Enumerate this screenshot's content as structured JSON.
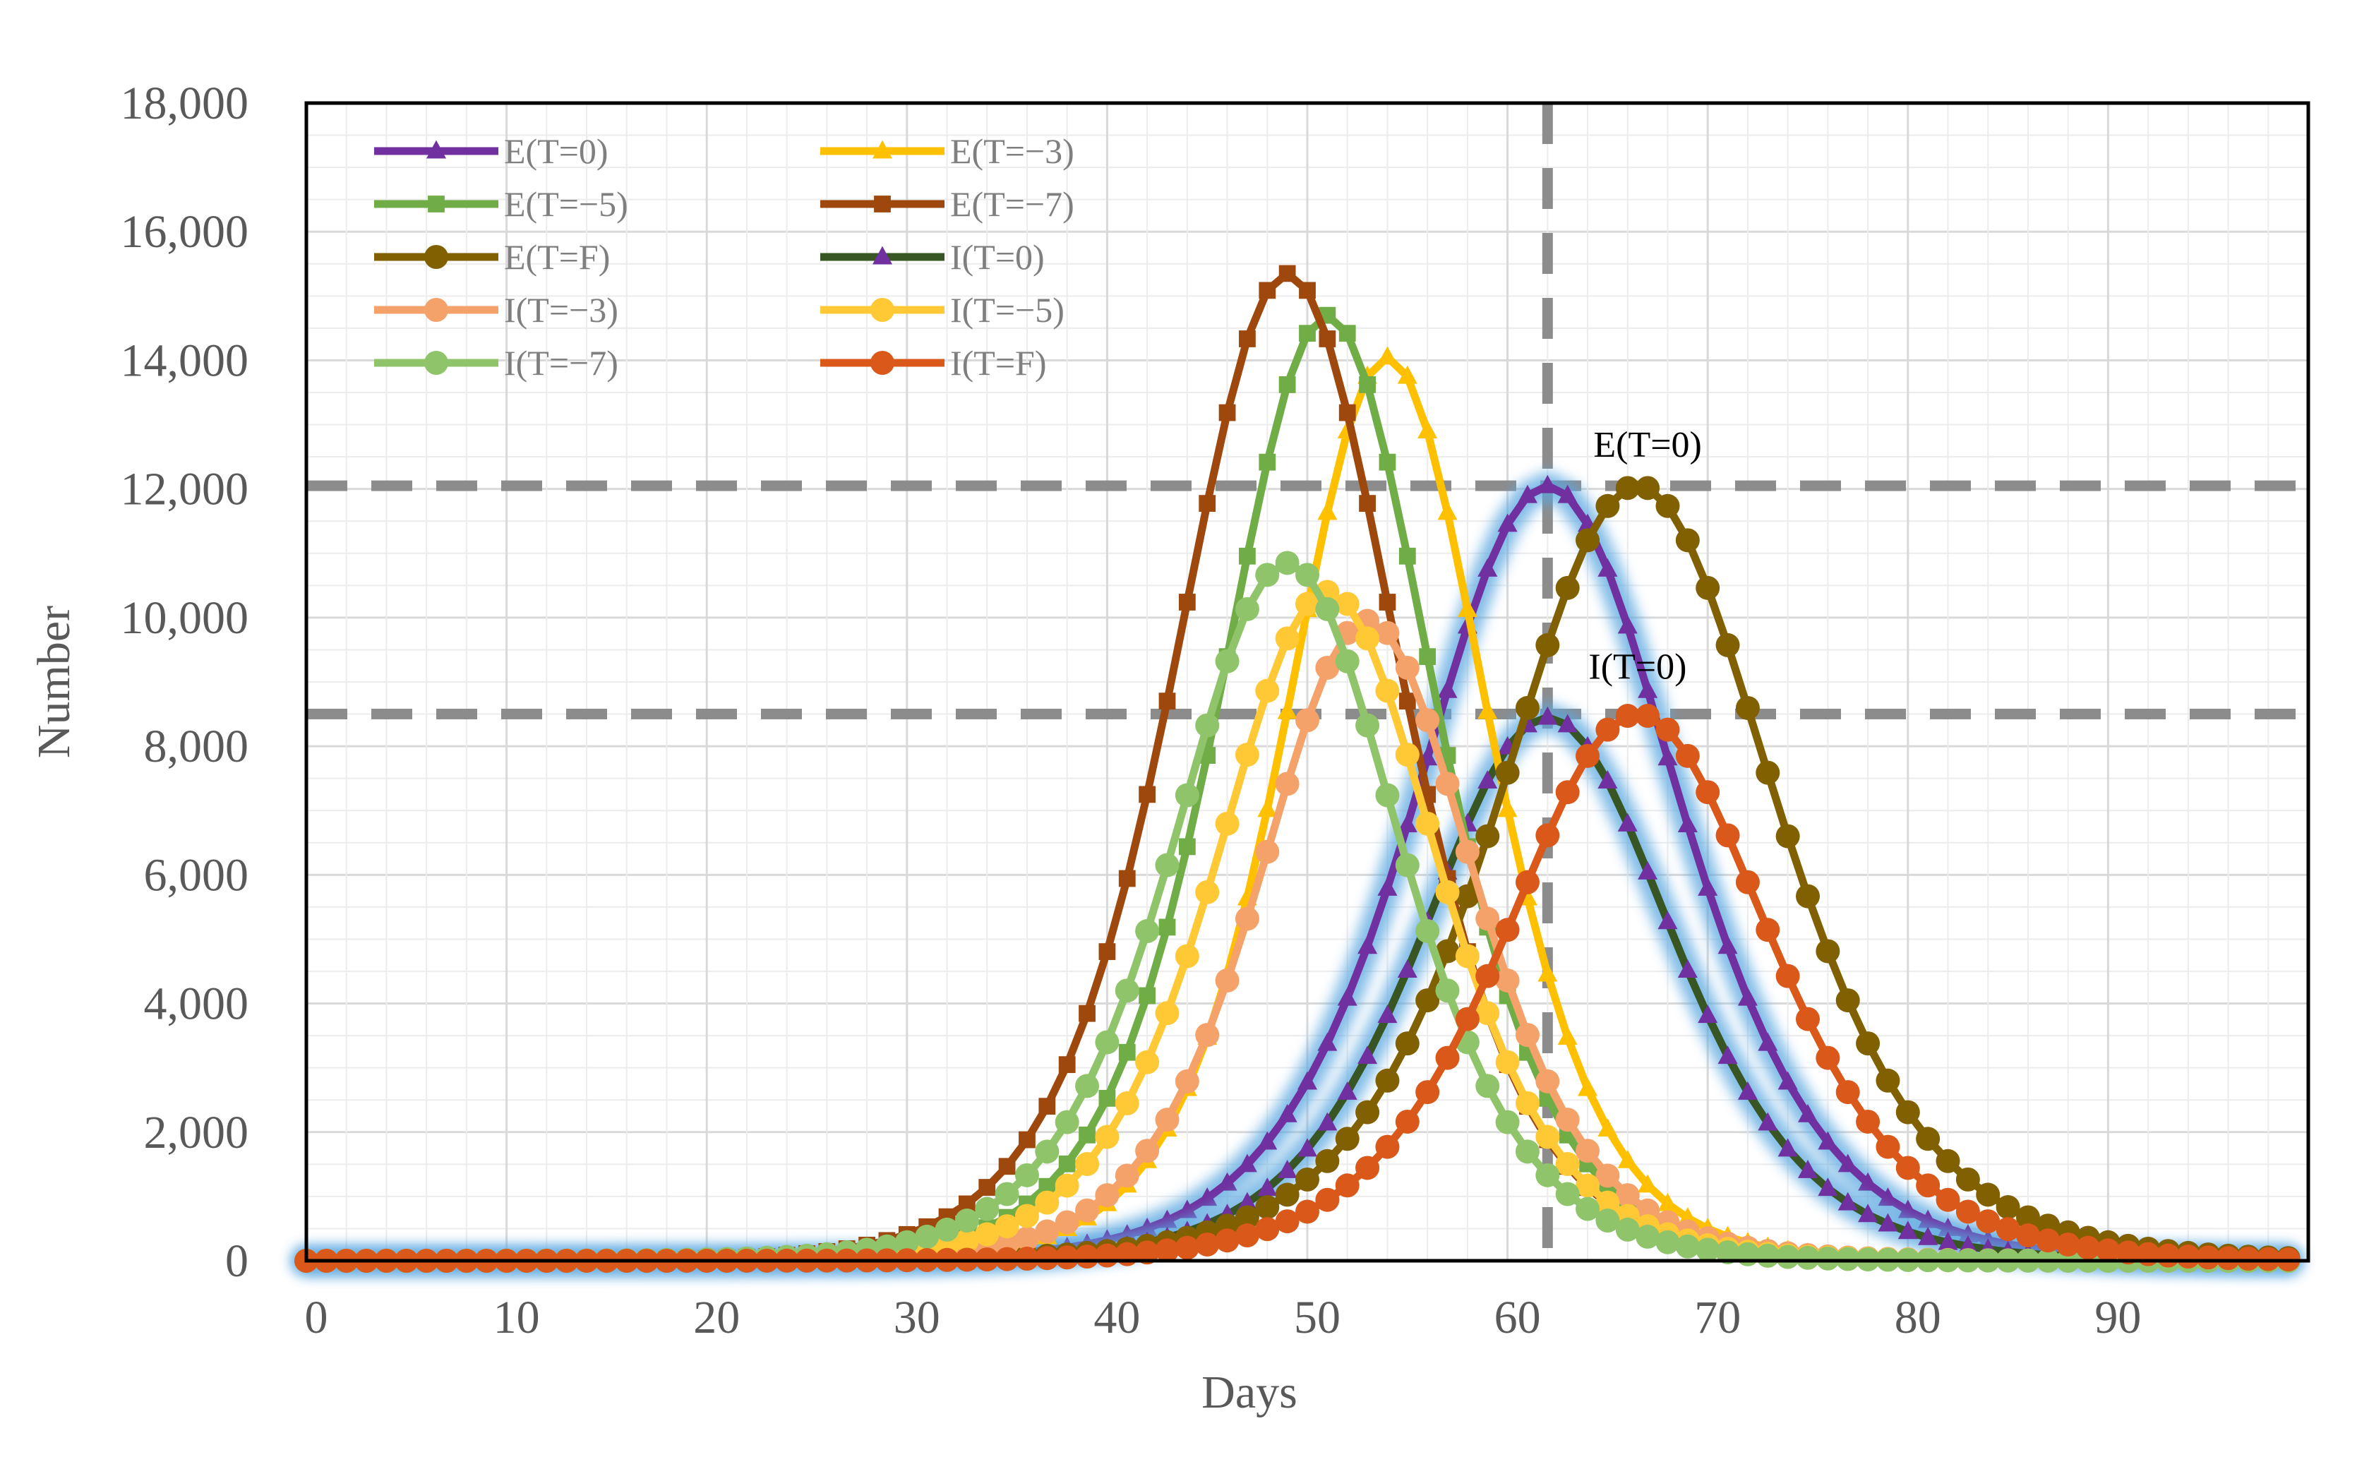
{
  "chart_data": {
    "type": "line",
    "title": "",
    "xlabel": "Days",
    "ylabel": "Number",
    "xlim": [
      0,
      100
    ],
    "ylim": [
      0,
      18000
    ],
    "x_ticks": [
      0,
      10,
      20,
      30,
      40,
      50,
      60,
      70,
      80,
      90
    ],
    "x_tick_labels": [
      "0",
      "10",
      "20",
      "30",
      "40",
      "50",
      "60",
      "70",
      "80",
      "90"
    ],
    "y_ticks": [
      0,
      2000,
      4000,
      6000,
      8000,
      10000,
      12000,
      14000,
      16000,
      18000
    ],
    "y_tick_labels": [
      "0",
      "2,000",
      "4,000",
      "6,000",
      "8,000",
      "10,000",
      "12,000",
      "14,000",
      "16,000",
      "18,000"
    ],
    "grid": true,
    "legend_position": "top-left",
    "reference_lines": {
      "vertical_x": 62,
      "horizontal_y": [
        12050,
        8500
      ]
    },
    "annotations": [
      {
        "text": "E(T=0)",
        "x": 67,
        "y": 12500
      },
      {
        "text": "I(T=0)",
        "x": 66.5,
        "y": 9050
      }
    ],
    "series": [
      {
        "name": "E(T=0)",
        "peak_day": 62,
        "peak": 12050,
        "width": 8.8,
        "color": "#7030a0",
        "marker": "triangle",
        "glow": true
      },
      {
        "name": "E(T=−3)",
        "peak_day": 54,
        "peak": 14050,
        "width": 6.8,
        "color": "#ffc000",
        "marker": "triangle",
        "glow": false
      },
      {
        "name": "E(T=−5)",
        "peak_day": 51,
        "peak": 14700,
        "width": 7.2,
        "color": "#70ad47",
        "marker": "square",
        "glow": false
      },
      {
        "name": "E(T=−7)",
        "peak_day": 49,
        "peak": 15350,
        "width": 7.6,
        "color": "#9e480e",
        "marker": "square",
        "glow": false
      },
      {
        "name": "E(T=F)",
        "peak_day": 66.5,
        "peak": 12050,
        "width": 9.2,
        "color": "#806000",
        "marker": "circle",
        "glow": false
      },
      {
        "name": "I(T=0)",
        "peak_day": 62,
        "peak": 8450,
        "width": 8.4,
        "color": "#375623",
        "marker": "triangle-purple",
        "glow": true
      },
      {
        "name": "I(T=−3)",
        "peak_day": 53,
        "peak": 9950,
        "width": 7.2,
        "color": "#f4a26a",
        "marker": "circle",
        "glow": false
      },
      {
        "name": "I(T=−5)",
        "peak_day": 51,
        "peak": 10400,
        "width": 7.4,
        "color": "#ffc936",
        "marker": "circle",
        "glow": false
      },
      {
        "name": "I(T=−7)",
        "peak_day": 49,
        "peak": 10850,
        "width": 7.6,
        "color": "#8fc46a",
        "marker": "circle",
        "glow": false
      },
      {
        "name": "I(T=F)",
        "peak_day": 66.5,
        "peak": 8500,
        "width": 8.8,
        "color": "#d9581a",
        "marker": "circle",
        "glow": false
      }
    ]
  }
}
